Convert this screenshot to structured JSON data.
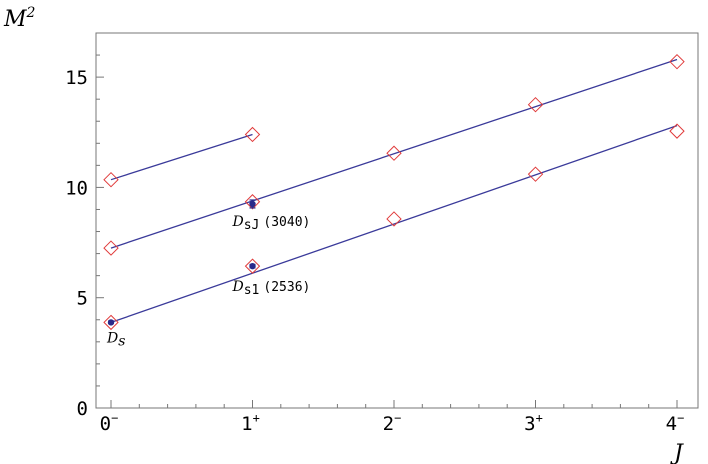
{
  "chart_data": {
    "type": "scatter",
    "title": "",
    "xlabel": "J",
    "ylabel": "M",
    "ylabel_superscript": "2",
    "xlim": [
      -0.1,
      4.2
    ],
    "ylim": [
      0,
      17
    ],
    "x_ticks": [
      {
        "value": 0,
        "base": "0",
        "sup": "−"
      },
      {
        "value": 1,
        "base": "1",
        "sup": "+"
      },
      {
        "value": 2,
        "base": "2",
        "sup": "−"
      },
      {
        "value": 3,
        "base": "3",
        "sup": "+"
      },
      {
        "value": 4,
        "base": "4",
        "sup": "−"
      }
    ],
    "y_ticks": [
      0,
      5,
      10,
      15
    ],
    "grid": false,
    "series": [
      {
        "marker": "diamond",
        "points": [
          {
            "x": 0,
            "y": 10.35
          },
          {
            "x": 1,
            "y": 12.4
          }
        ],
        "fit_line": [
          [
            0,
            10.35
          ],
          [
            1,
            12.4
          ]
        ]
      },
      {
        "marker": "diamond",
        "points": [
          {
            "x": 0,
            "y": 7.25
          },
          {
            "x": 1,
            "y": 9.35
          },
          {
            "x": 2,
            "y": 11.55
          },
          {
            "x": 3,
            "y": 13.75
          },
          {
            "x": 4,
            "y": 15.7
          }
        ],
        "fit_line": [
          [
            0,
            7.25
          ],
          [
            4,
            15.8
          ]
        ]
      },
      {
        "marker": "diamond",
        "points": [
          {
            "x": 0,
            "y": 3.88
          },
          {
            "x": 1,
            "y": 6.43
          },
          {
            "x": 2,
            "y": 8.57
          },
          {
            "x": 3,
            "y": 10.6
          },
          {
            "x": 4,
            "y": 12.55
          }
        ],
        "fit_line": [
          [
            0,
            3.88
          ],
          [
            4,
            12.8
          ]
        ]
      }
    ],
    "experimental_points": [
      {
        "x": 0,
        "y": 3.88,
        "err": 0.05
      },
      {
        "x": 1,
        "y": 6.43,
        "err": 0.08
      },
      {
        "x": 1,
        "y": 9.25,
        "err": 0.18
      }
    ],
    "annotations": [
      {
        "main": "D",
        "sub": "s",
        "suffix": "",
        "x": 0,
        "y": 3.88
      },
      {
        "main": "D",
        "sub": "s1",
        "suffix": "(2536)",
        "x": 1,
        "y": 6.43
      },
      {
        "main": "D",
        "sub": "sJ",
        "suffix": "(3040)",
        "x": 1,
        "y": 9.35
      }
    ],
    "colors": {
      "fit_line": "#3a3a9a",
      "diamond": "#e03a3a",
      "experimental": "#2a2a8a",
      "frame": "#777777"
    }
  }
}
